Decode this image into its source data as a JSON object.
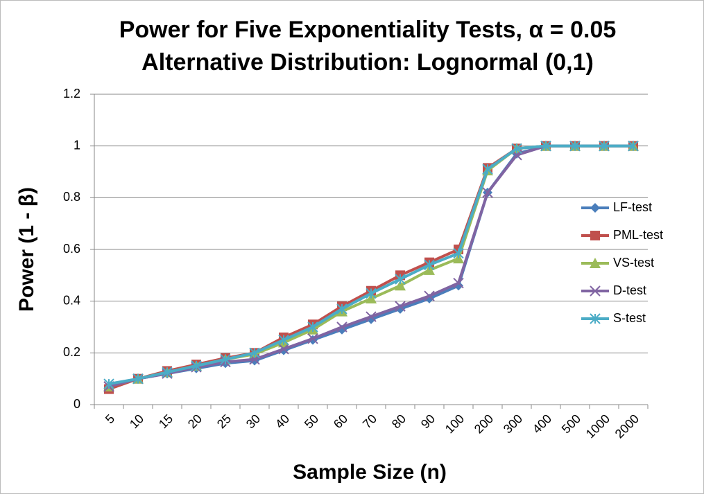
{
  "chart_data": {
    "type": "line",
    "title": "Power for Five Exponentiality Tests, α = 0.05",
    "subtitle": "Alternative Distribution: Lognormal (0,1)",
    "x_label": "Sample Size (n)",
    "y_label": "Power (1 - β)",
    "categories": [
      "5",
      "10",
      "15",
      "20",
      "25",
      "30",
      "40",
      "50",
      "60",
      "70",
      "80",
      "90",
      "100",
      "200",
      "300",
      "400",
      "500",
      "1000",
      "2000"
    ],
    "ylim": [
      0,
      1.2
    ],
    "yticks": [
      0,
      0.2,
      0.4,
      0.6,
      0.8,
      1,
      1.2
    ],
    "grid": true,
    "legend_position": "right",
    "series": [
      {
        "name": "LF-test",
        "color": "#4a7ebb",
        "marker": "diamond",
        "values": [
          0.07,
          0.1,
          0.12,
          0.14,
          0.16,
          0.17,
          0.21,
          0.25,
          0.29,
          0.33,
          0.37,
          0.41,
          0.46,
          0.82,
          0.97,
          1,
          1,
          1,
          1
        ]
      },
      {
        "name": "PML-test",
        "color": "#c0504d",
        "marker": "square",
        "values": [
          0.06,
          0.1,
          0.13,
          0.155,
          0.18,
          0.2,
          0.26,
          0.31,
          0.38,
          0.44,
          0.5,
          0.55,
          0.6,
          0.915,
          0.99,
          1,
          1,
          1,
          1
        ]
      },
      {
        "name": "VS-test",
        "color": "#9bbb59",
        "marker": "triangle",
        "values": [
          0.07,
          0.1,
          0.125,
          0.15,
          0.175,
          0.195,
          0.24,
          0.29,
          0.36,
          0.41,
          0.46,
          0.52,
          0.565,
          0.905,
          0.99,
          1,
          1,
          1,
          1
        ]
      },
      {
        "name": "D-test",
        "color": "#8064a2",
        "marker": "x",
        "values": [
          0.07,
          0.1,
          0.12,
          0.145,
          0.165,
          0.175,
          0.215,
          0.255,
          0.3,
          0.34,
          0.38,
          0.42,
          0.47,
          0.82,
          0.965,
          1,
          1,
          1,
          1
        ]
      },
      {
        "name": "S-test",
        "color": "#4bacc6",
        "marker": "star",
        "values": [
          0.08,
          0.1,
          0.125,
          0.15,
          0.175,
          0.2,
          0.25,
          0.3,
          0.37,
          0.43,
          0.485,
          0.54,
          0.585,
          0.91,
          0.99,
          1,
          1,
          1,
          1
        ]
      }
    ]
  }
}
